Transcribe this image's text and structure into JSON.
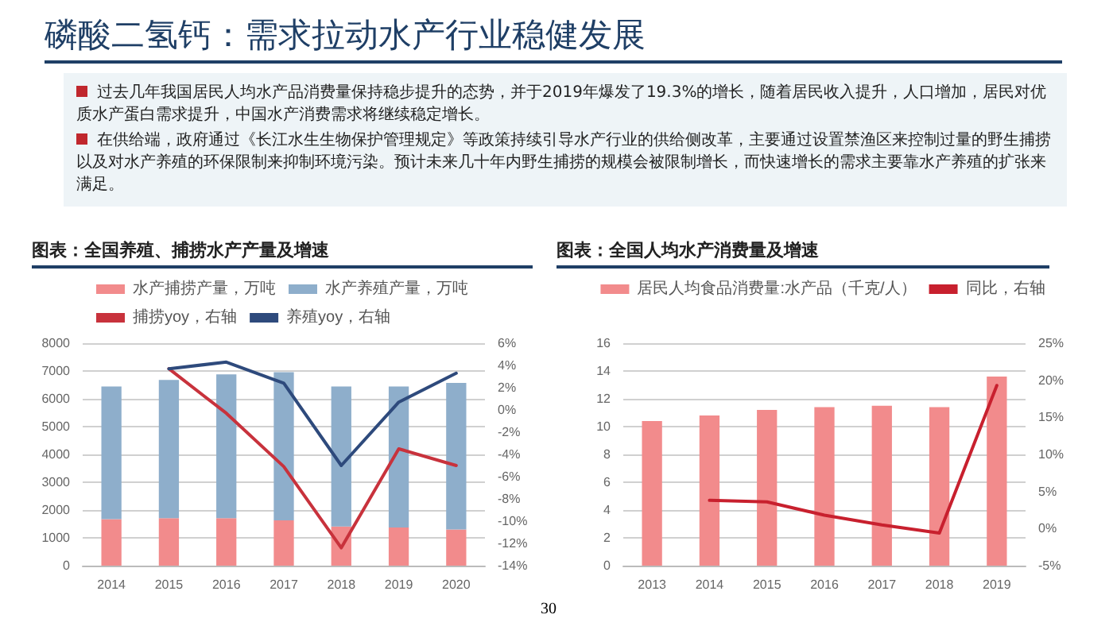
{
  "chart_data": [
    {
      "type": "other",
      "title": "磷酸二氢钙：需求拉动水产行业稳健发展",
      "annotations": [
        "过去几年我国居民人均水产品消费量保持稳步提升的态势，并于2019年爆发了19.3%的增长，随着居民收入提升，人口增加，居民对优质水产蛋白需求提升，中国水产消费需求将继续稳定增长。",
        "在供给端，政府通过《长江水生生物保护管理规定》等政策持续引导水产行业的供给侧改革，主要通过设置禁渔区来控制过量的野生捕捞以及对水产养殖的环保限制来抑制环境污染。预计未来几十年内野生捕捞的规模会被限制增长，而快速增长的需求主要靠水产养殖的扩张来满足。",
        "30"
      ]
    },
    {
      "type": "bar",
      "title": "图表：全国养殖、捕捞水产产量及增速",
      "categories": [
        "2014",
        "2015",
        "2016",
        "2017",
        "2018",
        "2019",
        "2020"
      ],
      "stacked": true,
      "legend": "top",
      "grid": "y",
      "marker": "none",
      "line_style": "solid",
      "ylim": [
        0,
        8000
      ],
      "yticks": [
        0,
        1000,
        2000,
        3000,
        4000,
        5000,
        6000,
        7000,
        8000
      ],
      "y2lim": [
        -14,
        6
      ],
      "y2ticks": [
        {
          "value": -14,
          "label": "-14%"
        },
        {
          "value": -12,
          "label": "-12%"
        },
        {
          "value": -10,
          "label": "-10%"
        },
        {
          "value": -8,
          "label": "-8%"
        },
        {
          "value": -6,
          "label": "-6%"
        },
        {
          "value": -4,
          "label": "-4%"
        },
        {
          "value": -2,
          "label": "-2%"
        },
        {
          "value": 0,
          "label": "0%"
        },
        {
          "value": 2,
          "label": "2%"
        },
        {
          "value": 4,
          "label": "4%"
        },
        {
          "value": 6,
          "label": "6%"
        }
      ],
      "series": [
        {
          "name": "水产捕捞产量，万吨",
          "color": "#f28b8c",
          "values": [
            1670,
            1710,
            1710,
            1630,
            1410,
            1370,
            1300
          ]
        },
        {
          "name": "水产养殖产量，万吨",
          "color": "#8eaecb",
          "values": [
            4770,
            4970,
            5170,
            5330,
            5030,
            5070,
            5270
          ]
        },
        {
          "name": "捕捞yoy，右轴",
          "type": "line",
          "axis": "y2",
          "color": "#c8323c",
          "values": [
            null,
            3.7,
            -0.3,
            -5.1,
            -12.4,
            -3.5,
            -5.0
          ]
        },
        {
          "name": "养殖yoy，右轴",
          "type": "line",
          "axis": "y2",
          "color": "#2e4a7c",
          "values": [
            null,
            3.7,
            4.3,
            2.4,
            -5.0,
            0.7,
            3.3
          ]
        }
      ]
    },
    {
      "type": "bar",
      "title": "图表：全国人均水产消费量及增速",
      "categories": [
        "2013",
        "2014",
        "2015",
        "2016",
        "2017",
        "2018",
        "2019"
      ],
      "legend": "top",
      "grid": "y",
      "marker": "none",
      "line_style": "solid",
      "ylim": [
        0,
        16
      ],
      "yticks": [
        0,
        2,
        4,
        6,
        8,
        10,
        12,
        14,
        16
      ],
      "y2lim": [
        -5,
        25
      ],
      "y2ticks": [
        {
          "value": -5,
          "label": "-5%"
        },
        {
          "value": 0,
          "label": "0%"
        },
        {
          "value": 5,
          "label": "5%"
        },
        {
          "value": 10,
          "label": "10%"
        },
        {
          "value": 15,
          "label": "15%"
        },
        {
          "value": 20,
          "label": "20%"
        },
        {
          "value": 25,
          "label": "25%"
        }
      ],
      "series": [
        {
          "name": "居民人均食品消费量:水产品（千克/人）",
          "color": "#f28b8c",
          "values": [
            10.4,
            10.8,
            11.2,
            11.4,
            11.5,
            11.4,
            13.6
          ]
        },
        {
          "name": "同比，右轴",
          "type": "line",
          "axis": "y2",
          "color": "#c8202e",
          "values": [
            null,
            3.8,
            3.6,
            1.8,
            0.5,
            -0.6,
            19.3
          ]
        }
      ]
    }
  ]
}
